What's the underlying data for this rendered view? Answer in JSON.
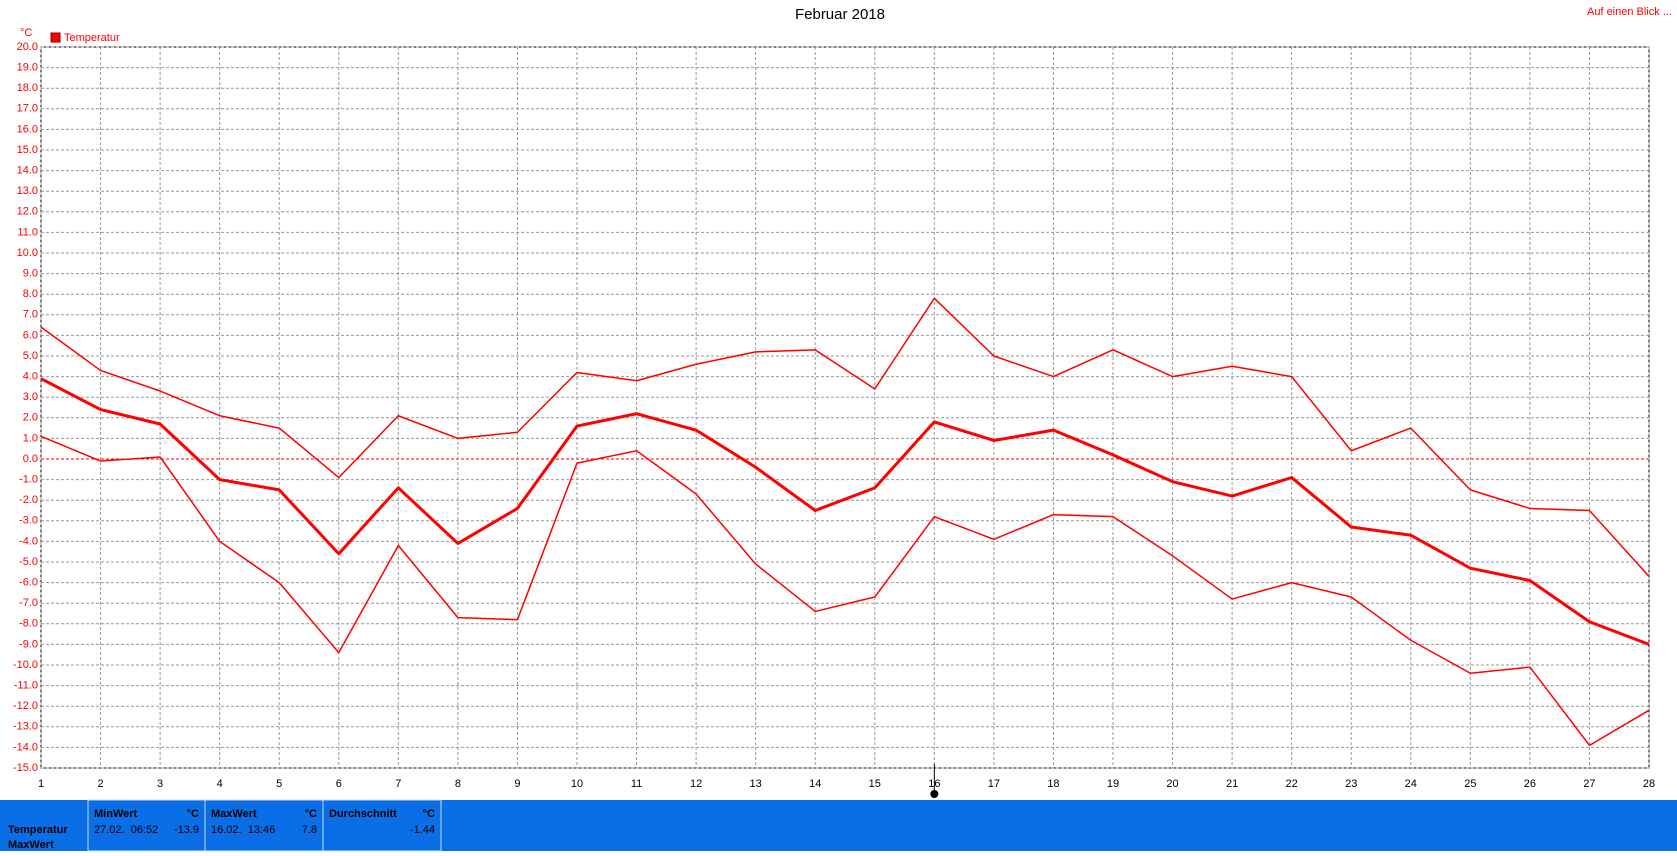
{
  "chart_data": {
    "type": "line",
    "title": "Februar 2018",
    "unit_label": "°C",
    "legend": "Temperatur",
    "legend_color": "#ff0000",
    "link": "Auf einen Blick ...",
    "x": [
      1,
      2,
      3,
      4,
      5,
      6,
      7,
      8,
      9,
      10,
      11,
      12,
      13,
      14,
      15,
      16,
      17,
      18,
      19,
      20,
      21,
      22,
      23,
      24,
      25,
      26,
      27,
      28
    ],
    "xlim": [
      1,
      28
    ],
    "xticks": [
      1,
      2,
      3,
      4,
      5,
      6,
      7,
      8,
      9,
      10,
      11,
      12,
      13,
      14,
      15,
      16,
      17,
      18,
      19,
      20,
      21,
      22,
      23,
      24,
      25,
      26,
      27,
      28
    ],
    "ylim": [
      -15,
      20
    ],
    "yticks": [
      {
        "value": -15,
        "label": "-15.0"
      },
      {
        "value": -14,
        "label": "-14.0"
      },
      {
        "value": -13,
        "label": "-13.0"
      },
      {
        "value": -12,
        "label": "-12.0"
      },
      {
        "value": -11,
        "label": "-11.0"
      },
      {
        "value": -10,
        "label": "-10.0"
      },
      {
        "value": -9,
        "label": "-9.0"
      },
      {
        "value": -8,
        "label": "-8.0"
      },
      {
        "value": -7,
        "label": "-7.0"
      },
      {
        "value": -6,
        "label": "-6.0"
      },
      {
        "value": -5,
        "label": "-5.0"
      },
      {
        "value": -4,
        "label": "-4.0"
      },
      {
        "value": -3,
        "label": "-3.0"
      },
      {
        "value": -2,
        "label": "-2.0"
      },
      {
        "value": -1,
        "label": "-1.0"
      },
      {
        "value": 0,
        "label": "0.0"
      },
      {
        "value": 1,
        "label": "1.0"
      },
      {
        "value": 2,
        "label": "2.0"
      },
      {
        "value": 3,
        "label": "3.0"
      },
      {
        "value": 4,
        "label": "4.0"
      },
      {
        "value": 5,
        "label": "5.0"
      },
      {
        "value": 6,
        "label": "6.0"
      },
      {
        "value": 7,
        "label": "7.0"
      },
      {
        "value": 8,
        "label": "8.0"
      },
      {
        "value": 9,
        "label": "9.0"
      },
      {
        "value": 10,
        "label": "10.0"
      },
      {
        "value": 11,
        "label": "11.0"
      },
      {
        "value": 12,
        "label": "12.0"
      },
      {
        "value": 13,
        "label": "13.0"
      },
      {
        "value": 14,
        "label": "14.0"
      },
      {
        "value": 15,
        "label": "15.0"
      },
      {
        "value": 16,
        "label": "16.0"
      },
      {
        "value": 17,
        "label": "17.0"
      },
      {
        "value": 18,
        "label": "18.0"
      },
      {
        "value": 19,
        "label": "19.0"
      },
      {
        "value": 20,
        "label": "20.0"
      }
    ],
    "grid": true,
    "series": [
      {
        "color": "#ff0000",
        "width": 1.5,
        "values": [
          6.4,
          4.3,
          3.3,
          2.1,
          1.5,
          -0.9,
          2.1,
          1.0,
          1.3,
          4.2,
          3.8,
          4.6,
          5.2,
          5.3,
          3.4,
          7.8,
          5.0,
          4.0,
          5.3,
          4.0,
          4.5,
          4.0,
          0.4,
          1.5,
          -1.5,
          -2.4,
          -2.5,
          -5.7
        ]
      },
      {
        "color": "#ff0000",
        "width": 3,
        "values": [
          3.9,
          2.4,
          1.7,
          -1.0,
          -1.5,
          -4.6,
          -1.4,
          -4.1,
          -2.4,
          1.6,
          2.2,
          1.4,
          -0.4,
          -2.5,
          -1.4,
          1.8,
          0.9,
          1.4,
          0.2,
          -1.1,
          -1.8,
          -0.9,
          -3.3,
          -3.7,
          -5.3,
          -5.9,
          -7.9,
          -9.0
        ]
      },
      {
        "color": "#ff0000",
        "width": 1.5,
        "values": [
          1.1,
          -0.1,
          0.1,
          -4.0,
          -6.0,
          -9.4,
          -4.2,
          -7.7,
          -7.8,
          -0.2,
          0.4,
          -1.7,
          -5.1,
          -7.4,
          -6.7,
          -2.8,
          -3.9,
          -2.7,
          -2.8,
          -4.7,
          -6.8,
          -6.0,
          -6.7,
          -8.8,
          -10.4,
          -10.1,
          -13.9,
          -12.2
        ]
      }
    ]
  },
  "footer": {
    "row_labels": [
      "Temperatur",
      "MaxWert"
    ],
    "columns": [
      {
        "title": "MinWert",
        "unit": "°C",
        "time": "27.02.  06:52",
        "value": "-13.9"
      },
      {
        "title": "MaxWert",
        "unit": "°C",
        "time": "16.02.  13:46",
        "value": "7.8"
      },
      {
        "title": "Durchschnitt",
        "unit": "°C",
        "value": "-1.44"
      }
    ]
  }
}
